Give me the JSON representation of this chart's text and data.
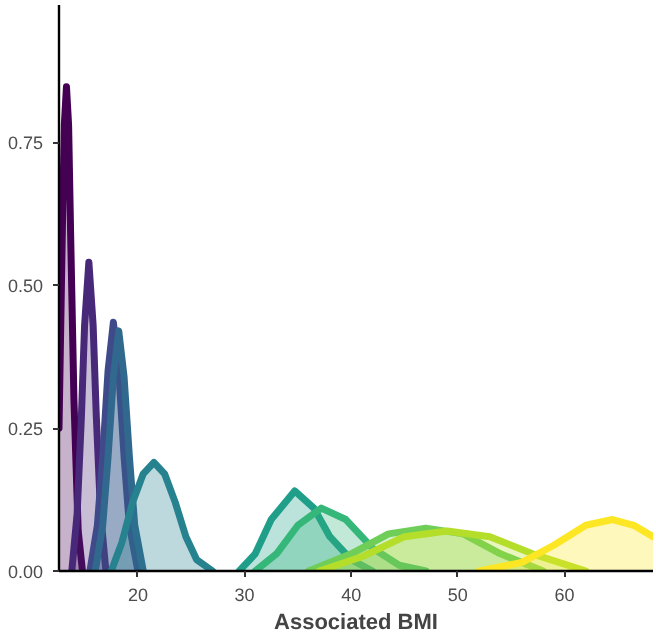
{
  "chart_data": {
    "type": "area",
    "xlabel": "Associated BMI",
    "xlim": [
      12.6,
      68.3
    ],
    "ylim": [
      0,
      0.99
    ],
    "xticks": [
      20,
      30,
      40,
      50,
      60
    ],
    "yticks": [
      {
        "value": 0,
        "label": "0.00"
      },
      {
        "value": 0.25,
        "label": "0.25"
      },
      {
        "value": 0.5,
        "label": "0.50"
      },
      {
        "value": 0.75,
        "label": "0.75"
      }
    ],
    "grid": false,
    "series": [
      {
        "color": "#440154",
        "x": [
          12.6,
          12.9,
          13.1,
          13.3,
          13.5,
          13.7,
          14.0,
          14.4,
          14.8
        ],
        "values": [
          0.25,
          0.58,
          0.78,
          0.847,
          0.78,
          0.58,
          0.3,
          0.07,
          0.0
        ]
      },
      {
        "color": "#482878",
        "x": [
          13.8,
          14.3,
          14.7,
          15.0,
          15.4,
          15.8,
          16.1,
          16.5,
          17.0
        ],
        "values": [
          0.0,
          0.1,
          0.27,
          0.43,
          0.54,
          0.43,
          0.27,
          0.1,
          0.0
        ]
      },
      {
        "color": "#3e4a89",
        "x": [
          15.5,
          16.2,
          16.7,
          17.2,
          17.7,
          18.2,
          18.7,
          19.2,
          20.0
        ],
        "values": [
          0.0,
          0.08,
          0.2,
          0.35,
          0.435,
          0.35,
          0.2,
          0.08,
          0.0
        ]
      },
      {
        "color": "#31688e",
        "x": [
          16.0,
          16.7,
          17.2,
          17.7,
          18.2,
          18.7,
          19.2,
          19.7,
          20.5
        ],
        "values": [
          0.0,
          0.08,
          0.2,
          0.34,
          0.42,
          0.34,
          0.2,
          0.08,
          0.0
        ]
      },
      {
        "color": "#26828e",
        "x": [
          17.5,
          18.5,
          19.5,
          20.5,
          21.5,
          22.5,
          23.5,
          24.5,
          25.5,
          27.0
        ],
        "values": [
          0.0,
          0.05,
          0.12,
          0.17,
          0.19,
          0.17,
          0.12,
          0.06,
          0.02,
          0.0
        ]
      },
      {
        "color": "#1f9e89",
        "x": [
          29.5,
          31,
          32.5,
          34.7,
          36.5,
          38,
          40,
          42
        ],
        "values": [
          0.0,
          0.03,
          0.09,
          0.14,
          0.11,
          0.06,
          0.02,
          0.0
        ]
      },
      {
        "color": "#35b779",
        "x": [
          31,
          33,
          35,
          37.2,
          39.5,
          42,
          44.5,
          47
        ],
        "values": [
          0.0,
          0.03,
          0.08,
          0.11,
          0.09,
          0.04,
          0.01,
          0.0
        ]
      },
      {
        "color": "#6ece58",
        "x": [
          36,
          40,
          43.5,
          47,
          50.5,
          54,
          58
        ],
        "values": [
          0.0,
          0.03,
          0.065,
          0.075,
          0.065,
          0.03,
          0.0
        ]
      },
      {
        "color": "#b5de2b",
        "x": [
          37,
          41,
          45,
          49,
          53,
          57,
          62
        ],
        "values": [
          0.0,
          0.025,
          0.06,
          0.07,
          0.06,
          0.03,
          0.0
        ]
      },
      {
        "color": "#fde725",
        "x": [
          52,
          56,
          59,
          62,
          64.5,
          66.5,
          68.3
        ],
        "values": [
          0.0,
          0.015,
          0.045,
          0.08,
          0.09,
          0.08,
          0.06
        ]
      }
    ]
  }
}
